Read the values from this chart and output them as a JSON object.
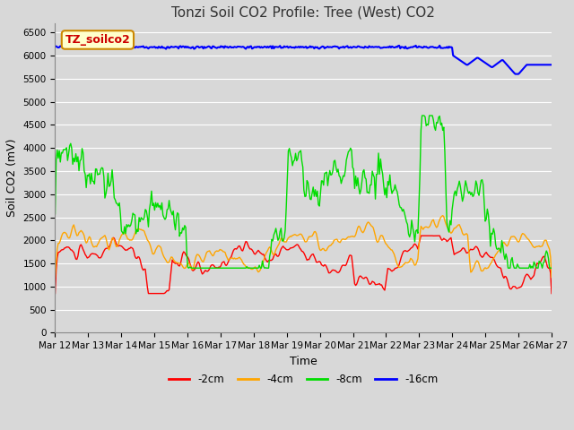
{
  "title": "Tonzi Soil CO2 Profile: Tree (West) CO2",
  "xlabel": "Time",
  "ylabel": "Soil CO2 (mV)",
  "ylim": [
    0,
    6700
  ],
  "yticks": [
    0,
    500,
    1000,
    1500,
    2000,
    2500,
    3000,
    3500,
    4000,
    4500,
    5000,
    5500,
    6000,
    6500
  ],
  "fig_bg": "#d8d8d8",
  "plot_bg_color": "#d8d8d8",
  "legend_label": "TZ_soilco2",
  "legend_bg": "#ffffcc",
  "legend_border": "#cc8800",
  "series_colors": [
    "#ff0000",
    "#ffa500",
    "#00dd00",
    "#0000ff"
  ],
  "series_labels": [
    "-2cm",
    "-4cm",
    "-8cm",
    "-16cm"
  ],
  "series_linewidths": [
    1.0,
    1.0,
    1.0,
    1.5
  ],
  "x_tick_labels": [
    "Mar 12",
    "Mar 13",
    "Mar 14",
    "Mar 15",
    "Mar 16",
    "Mar 17",
    "Mar 18",
    "Mar 19",
    "Mar 20",
    "Mar 21",
    "Mar 22",
    "Mar 23",
    "Mar 24",
    "Mar 25",
    "Mar 26",
    "Mar 27"
  ],
  "title_fontsize": 11,
  "axis_label_fontsize": 9,
  "tick_fontsize": 7.5,
  "grid_color": "#ffffff",
  "n_points": 480
}
